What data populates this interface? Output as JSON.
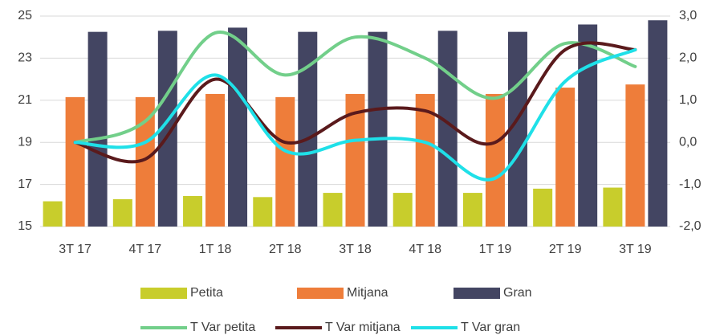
{
  "chart_data": {
    "type": "bar",
    "categories": [
      "3T 17",
      "4T 17",
      "1T 18",
      "2T 18",
      "3T 18",
      "4T 18",
      "1T 19",
      "2T 19",
      "3T 19"
    ],
    "series": [
      {
        "name": "Petita",
        "type": "bar",
        "color": "#c8cd2c",
        "values": [
          16.2,
          16.3,
          16.45,
          16.4,
          16.6,
          16.6,
          16.6,
          16.8,
          16.85
        ]
      },
      {
        "name": "Mitjana",
        "type": "bar",
        "color": "#ee7d3a",
        "values": [
          21.15,
          21.15,
          21.3,
          21.15,
          21.3,
          21.3,
          21.3,
          21.6,
          21.75
        ]
      },
      {
        "name": "Gran",
        "type": "bar",
        "color": "#434562",
        "values": [
          24.25,
          24.3,
          24.45,
          24.25,
          24.25,
          24.3,
          24.25,
          24.6,
          24.8
        ]
      },
      {
        "name": "T Var petita",
        "type": "line",
        "axis": "y2",
        "color": "#72cf8a",
        "values": [
          0.0,
          0.5,
          2.6,
          1.6,
          2.5,
          2.0,
          1.05,
          2.35,
          1.8
        ]
      },
      {
        "name": "T Var mitjana",
        "type": "line",
        "axis": "y2",
        "color": "#5a1a1c",
        "values": [
          0.0,
          -0.4,
          1.5,
          0.0,
          0.7,
          0.75,
          0.0,
          2.2,
          2.2
        ]
      },
      {
        "name": "T Var gran",
        "type": "line",
        "axis": "y2",
        "color": "#1fe0e8",
        "values": [
          0.0,
          0.0,
          1.6,
          -0.2,
          0.05,
          0.0,
          -0.85,
          1.45,
          2.2
        ]
      }
    ],
    "ylim": [
      15,
      25
    ],
    "yticks": [
      15,
      17,
      19,
      21,
      23,
      25
    ],
    "y2lim": [
      -2,
      3
    ],
    "y2ticks": [
      {
        "value": -2,
        "label": "-2,0"
      },
      {
        "value": -1,
        "label": "-1,0"
      },
      {
        "value": 0,
        "label": "0,0"
      },
      {
        "value": 1,
        "label": "1,0"
      },
      {
        "value": 2,
        "label": "2,0"
      },
      {
        "value": 3,
        "label": "3,0"
      }
    ],
    "grid": true,
    "legend": "bottom"
  }
}
